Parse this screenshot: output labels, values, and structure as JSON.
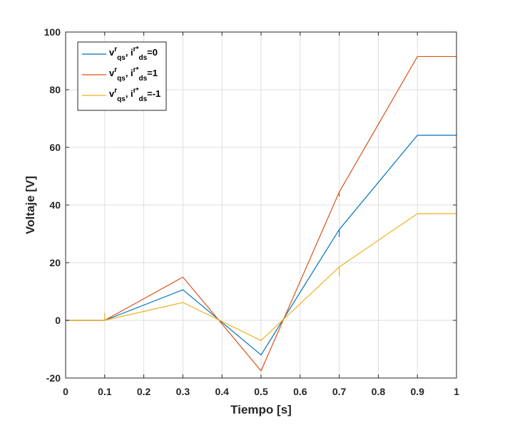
{
  "chart_data": {
    "type": "line",
    "title": "",
    "xlabel": "Tiempo [s]",
    "ylabel": "Voltaje [V]",
    "xlim": [
      0,
      1
    ],
    "ylim": [
      -20,
      100
    ],
    "xticks": [
      0,
      0.1,
      0.2,
      0.3,
      0.4,
      0.5,
      0.6,
      0.7,
      0.8,
      0.9,
      1
    ],
    "xtick_labels": [
      "0",
      "0.1",
      "0.2",
      "0.3",
      "0.4",
      "0.5",
      "0.6",
      "0.7",
      "0.8",
      "0.9",
      "1"
    ],
    "yticks": [
      -20,
      0,
      20,
      40,
      60,
      80,
      100
    ],
    "ytick_labels": [
      "-20",
      "0",
      "20",
      "40",
      "60",
      "80",
      "100"
    ],
    "grid": true,
    "legend_position": "top-left",
    "series": [
      {
        "name": "v_qs^r, i_ds^r*=0",
        "legend": {
          "v": "v",
          "v_sup": "r",
          "v_sub": "qs",
          "sep": ", ",
          "i": "i",
          "i_sup": "r*",
          "i_sub": "ds",
          "eq": "=0"
        },
        "color": "#0072BD",
        "x": [
          0,
          0.1,
          0.1,
          0.1,
          0.3,
          0.5,
          0.7,
          0.7,
          0.7,
          0.9,
          1
        ],
        "y": [
          0,
          0,
          0.5,
          0,
          10.6,
          -12,
          31.5,
          29,
          31.5,
          64.2,
          64.2
        ]
      },
      {
        "name": "v_qs^r, i_ds^r*=1",
        "legend": {
          "v": "v",
          "v_sup": "r",
          "v_sub": "qs",
          "sep": ", ",
          "i": "i",
          "i_sup": "r*",
          "i_sub": "ds",
          "eq": "=1"
        },
        "color": "#D95319",
        "x": [
          0,
          0.1,
          0.3,
          0.5,
          0.7,
          0.7,
          0.7,
          0.9,
          1
        ],
        "y": [
          0,
          0,
          15,
          -17.5,
          44.5,
          43,
          44.5,
          91.5,
          91.5
        ]
      },
      {
        "name": "v_qs^r, i_ds^r*=-1",
        "legend": {
          "v": "v",
          "v_sup": "r",
          "v_sub": "qs",
          "sep": ", ",
          "i": "i",
          "i_sup": "r*",
          "i_sub": "ds",
          "eq": "=-1"
        },
        "color": "#EDB120",
        "x": [
          0,
          0.1,
          0.1,
          0.1,
          0.3,
          0.5,
          0.7,
          0.7,
          0.7,
          0.9,
          1
        ],
        "y": [
          0,
          0,
          2.5,
          0,
          6.2,
          -7,
          18.5,
          15.5,
          18.5,
          37,
          37
        ]
      }
    ]
  }
}
